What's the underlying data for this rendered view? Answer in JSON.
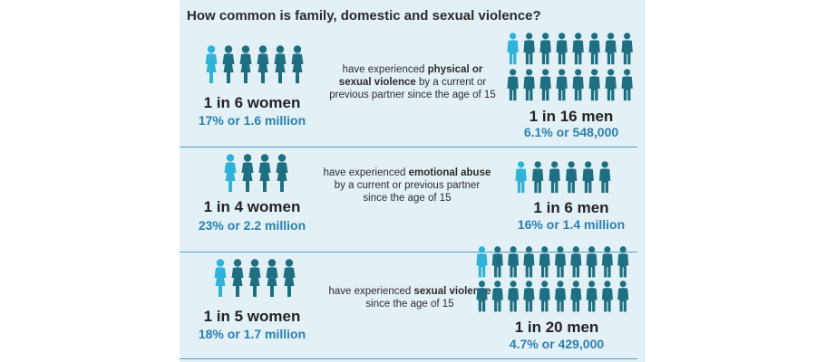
{
  "title": "How common is family, domestic and sexual violence?",
  "colors": {
    "panel_bg": "#e3f1f7",
    "figure_dark": "#1e6f82",
    "figure_light": "#2fb3d9",
    "accent_text": "#2a7fb0",
    "divider": "#4fa3bf"
  },
  "rows": [
    {
      "women": {
        "headline": "1 in 6 women",
        "stat": "17% or 1.6 million",
        "figures_total": 6,
        "figures_highlighted": 1
      },
      "description": {
        "prefix": "have experienced",
        "bold": "physical or sexual violence",
        "suffix": "by a current or previous partner since the age of 15"
      },
      "men": {
        "headline": "1 in 16 men",
        "stat": "6.1% or 548,000",
        "figures_total": 16,
        "figures_highlighted": 1
      }
    },
    {
      "women": {
        "headline": "1 in 4 women",
        "stat": "23% or 2.2 million",
        "figures_total": 4,
        "figures_highlighted": 1
      },
      "description": {
        "prefix": "have experienced",
        "bold": "emotional abuse",
        "suffix": "by a current or previous partner since the age of 15"
      },
      "men": {
        "headline": "1 in 6 men",
        "stat": "16% or 1.4 million",
        "figures_total": 6,
        "figures_highlighted": 1
      }
    },
    {
      "women": {
        "headline": "1 in 5 women",
        "stat": "18% or 1.7 million",
        "figures_total": 5,
        "figures_highlighted": 1
      },
      "description": {
        "prefix": "have experienced",
        "bold": "sexual violence",
        "suffix": "since the age of 15"
      },
      "men": {
        "headline": "1 in 20 men",
        "stat": "4.7% or 429,000",
        "figures_total": 20,
        "figures_highlighted": 1
      }
    }
  ]
}
